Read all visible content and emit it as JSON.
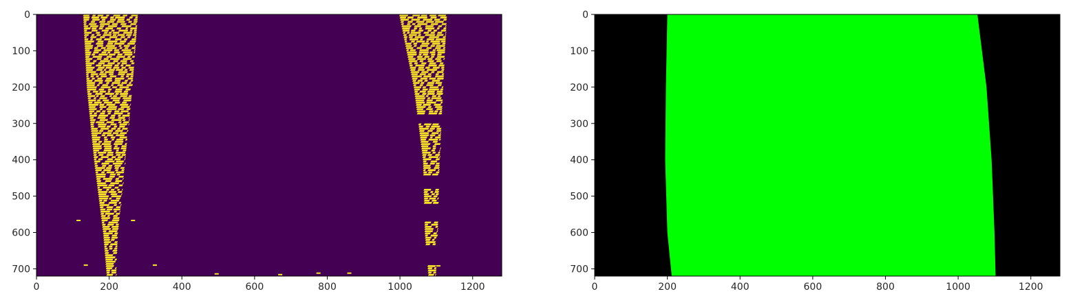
{
  "chart_data": [
    {
      "type": "heatmap",
      "title": "",
      "xlabel": "",
      "ylabel": "",
      "xlim": [
        0,
        1280
      ],
      "ylim": [
        720,
        0
      ],
      "xticks": [
        0,
        200,
        400,
        600,
        800,
        1000,
        1200
      ],
      "yticks": [
        0,
        100,
        200,
        300,
        400,
        500,
        600,
        700
      ],
      "colors": {
        "background": "#440154",
        "lane_pixels": "#fde725"
      },
      "left_lane_x_at_y": [
        {
          "y": 0,
          "x_min": 130,
          "x_max": 280
        },
        {
          "y": 200,
          "x_min": 140,
          "x_max": 265
        },
        {
          "y": 400,
          "x_min": 160,
          "x_max": 245
        },
        {
          "y": 600,
          "x_min": 185,
          "x_max": 225
        },
        {
          "y": 720,
          "x_min": 195,
          "x_max": 220
        }
      ],
      "right_lane_x_at_y": [
        {
          "y": 0,
          "x_min": 1000,
          "x_max": 1130
        },
        {
          "y": 200,
          "x_min": 1040,
          "x_max": 1120
        },
        {
          "y": 400,
          "x_min": 1065,
          "x_max": 1110
        },
        {
          "y": 600,
          "x_min": 1070,
          "x_max": 1105
        },
        {
          "y": 720,
          "x_min": 1080,
          "x_max": 1100
        }
      ]
    },
    {
      "type": "heatmap",
      "title": "",
      "xlabel": "",
      "ylabel": "",
      "xlim": [
        0,
        1280
      ],
      "ylim": [
        720,
        0
      ],
      "xticks": [
        0,
        200,
        400,
        600,
        800,
        1000,
        1200
      ],
      "yticks": [
        0,
        100,
        200,
        300,
        400,
        500,
        600,
        700
      ],
      "colors": {
        "background": "#000000",
        "lane_area": "#00ff00"
      },
      "lane_area_left_boundary": [
        {
          "y": 0,
          "x": 200
        },
        {
          "y": 200,
          "x": 196
        },
        {
          "y": 400,
          "x": 194
        },
        {
          "y": 600,
          "x": 200
        },
        {
          "y": 720,
          "x": 212
        }
      ],
      "lane_area_right_boundary": [
        {
          "y": 0,
          "x": 1053
        },
        {
          "y": 200,
          "x": 1078
        },
        {
          "y": 400,
          "x": 1092
        },
        {
          "y": 600,
          "x": 1100
        },
        {
          "y": 720,
          "x": 1103
        }
      ]
    }
  ]
}
